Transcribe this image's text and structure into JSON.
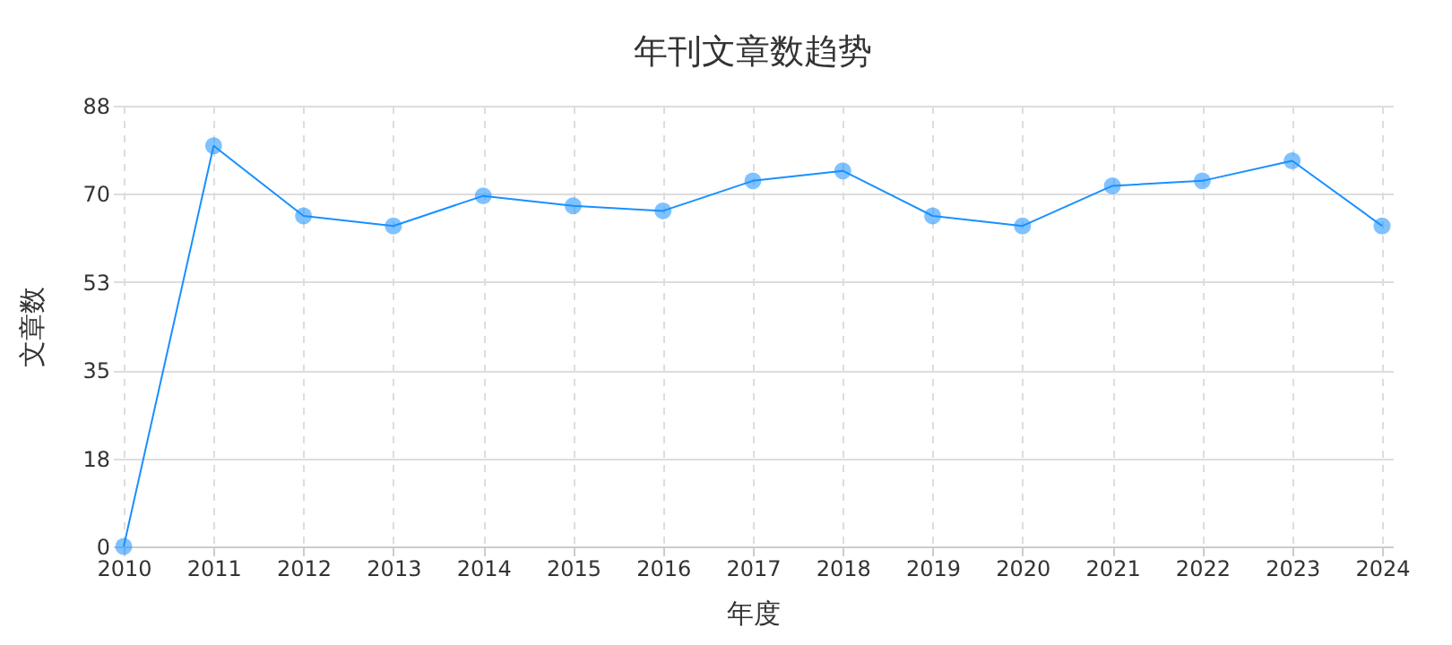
{
  "chart_data": {
    "type": "line",
    "title": "年刊文章数趋势",
    "xlabel": "年度",
    "ylabel": "文章数",
    "categories": [
      "2010",
      "2011",
      "2012",
      "2013",
      "2014",
      "2015",
      "2016",
      "2017",
      "2018",
      "2019",
      "2020",
      "2021",
      "2022",
      "2023",
      "2024"
    ],
    "series": [
      {
        "color": "#1890ff",
        "values": [
          0,
          80,
          66,
          64,
          70,
          68,
          67,
          73,
          75,
          66,
          64,
          72,
          73,
          77,
          64
        ]
      }
    ],
    "ylim": [
      0,
      88
    ],
    "yticks": [
      0,
      {
        "value": 17.6,
        "label": "18"
      },
      {
        "value": 35.2,
        "label": "35"
      },
      {
        "value": 52.8,
        "label": "53"
      },
      {
        "value": 70.4,
        "label": "70"
      },
      88
    ],
    "grid": true,
    "marker": "circle",
    "line_style": "solid"
  }
}
